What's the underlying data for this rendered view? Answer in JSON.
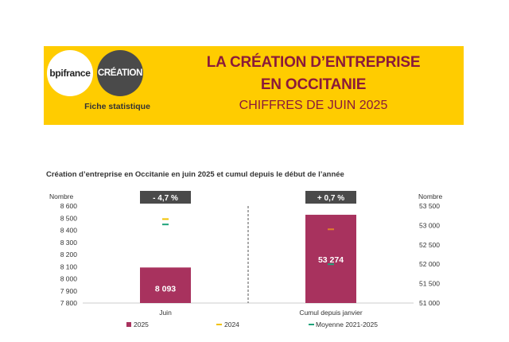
{
  "banner": {
    "logo_bpi": "bpifrance",
    "logo_creation": "CRÉATION",
    "fiche": "Fiche statistique",
    "title_line1": "LA CRÉATION D’ENTREPRISE",
    "title_line2": "EN OCCITANIE",
    "title_line3": "CHIFFRES DE JUIN 2025"
  },
  "colors": {
    "banner": "#ffcc00",
    "title": "#8b1a3a",
    "bar_2025": "#a8325e",
    "marker_2024": "#f2c200",
    "marker_avg": "#1fa37a",
    "marker_2024_cumul": "#e0802a",
    "badge": "#4a4a4a"
  },
  "chart_data": {
    "type": "bar",
    "title": "Création d’entreprise en Occitanie en juin 2025 et cumul depuis le début de l’année",
    "left_axis": {
      "label": "Nombre",
      "ylim": [
        7800,
        8600
      ],
      "ticks": [
        "8 600",
        "8 500",
        "8 400",
        "8 300",
        "8 200",
        "8 100",
        "8 000",
        "7 900",
        "7 800"
      ]
    },
    "right_axis": {
      "label": "Nombre",
      "ylim": [
        51000,
        53500
      ],
      "ticks": [
        "53 500",
        "53 000",
        "52 500",
        "52 000",
        "51 500",
        "51 000"
      ]
    },
    "categories": [
      "Juin",
      "Cumul depuis janvier"
    ],
    "badges": [
      "- 4,7 %",
      "+ 0,7 %"
    ],
    "series": [
      {
        "name": "2025",
        "values": [
          8093,
          53274
        ],
        "labels": [
          "8 093",
          "53 274"
        ]
      },
      {
        "name": "2024",
        "values": [
          8492,
          52900
        ]
      },
      {
        "name": "Moyenne 2021-2025",
        "values": [
          8448,
          52000
        ]
      }
    ]
  }
}
